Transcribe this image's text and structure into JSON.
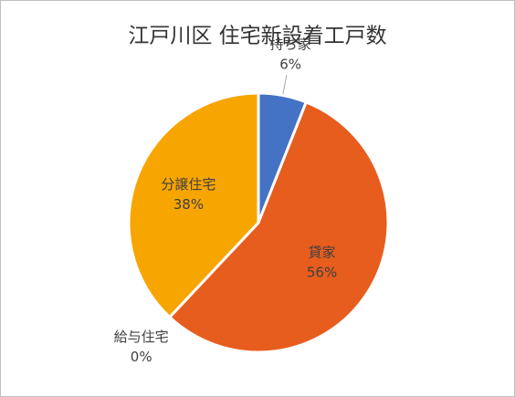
{
  "chart_data": {
    "type": "pie",
    "title": "江戸川区 住宅新設着工戸数",
    "categories": [
      "持ち家",
      "貸家",
      "給与住宅",
      "分譲住宅"
    ],
    "values": [
      6,
      56,
      0,
      38
    ],
    "value_labels": [
      "6%",
      "56%",
      "0%",
      "38%"
    ],
    "colors": [
      "#4472c4",
      "#e75d1e",
      "#a5a5a5",
      "#f7a500"
    ]
  }
}
